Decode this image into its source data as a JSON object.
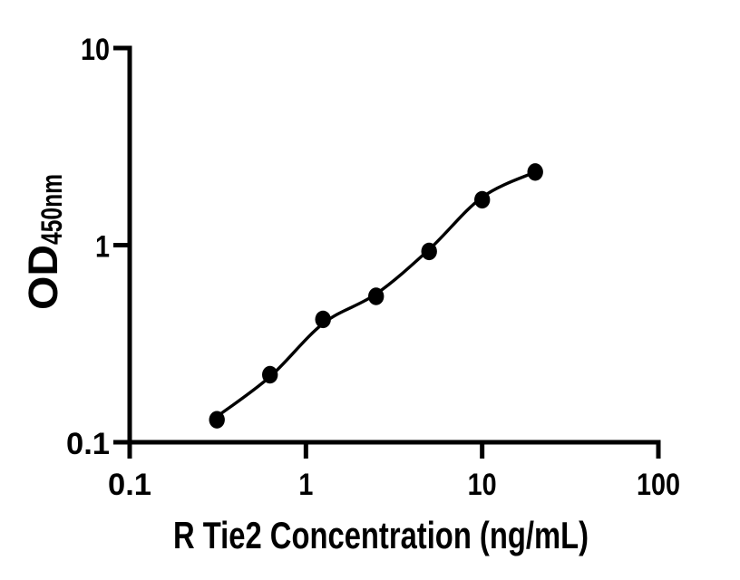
{
  "figure": {
    "background": "#ffffff",
    "foreground": "#000000"
  },
  "chart_data": {
    "type": "scatter",
    "title": "",
    "xlabel": "R Tie2 Concentration (ng/mL)",
    "ylabel": "OD",
    "ylabel_subscript": "450nm",
    "x_scale": "log10",
    "y_scale": "log10",
    "xlim": [
      0.1,
      100
    ],
    "ylim": [
      0.1,
      10
    ],
    "x_tick_labels": [
      "0.1",
      "1",
      "10",
      "100"
    ],
    "x_tick_values": [
      0.1,
      1,
      10,
      100
    ],
    "y_tick_labels": [
      "0.1",
      "1",
      "10"
    ],
    "y_tick_values": [
      0.1,
      1,
      10
    ],
    "grid": false,
    "legend": null,
    "series": [
      {
        "name": "standard-points",
        "type": "scatter",
        "marker": "filled-circle",
        "color": "#000000",
        "x": [
          0.3125,
          0.625,
          1.25,
          2.5,
          5,
          10,
          20
        ],
        "y": [
          0.13,
          0.22,
          0.42,
          0.55,
          0.93,
          1.7,
          2.35
        ]
      },
      {
        "name": "fitted-curve",
        "type": "line",
        "color": "#000000",
        "x": [
          0.3125,
          0.625,
          1.25,
          2.5,
          5,
          10,
          20
        ],
        "y": [
          0.135,
          0.215,
          0.4,
          0.565,
          0.95,
          1.75,
          2.35
        ]
      }
    ]
  }
}
